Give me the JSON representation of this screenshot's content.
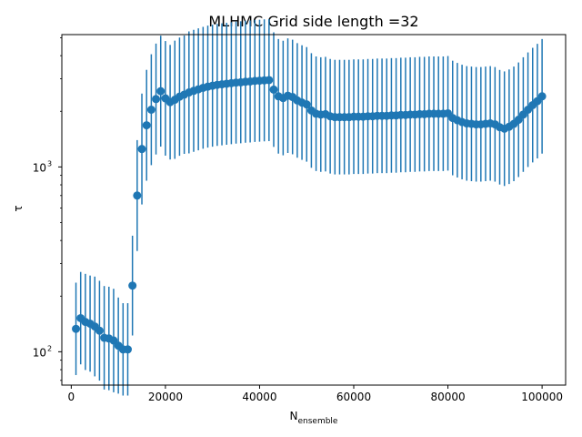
{
  "chart_data": {
    "type": "scatter",
    "title": "MLHMC Grid side length =32",
    "xlabel": "N",
    "xlabel_subscript": "ensemble",
    "ylabel": "τ",
    "yscale": "log",
    "xlim": [
      -2000,
      105000
    ],
    "ylim": [
      66,
      5200
    ],
    "xticks": [
      0,
      20000,
      40000,
      60000,
      80000,
      100000
    ],
    "xtick_labels": [
      "0",
      "20000",
      "40000",
      "60000",
      "80000",
      "100000"
    ],
    "ytick_major": [
      100,
      1000
    ],
    "ytick_labels": [
      "10",
      "10"
    ],
    "ytick_label_exponents": [
      "2",
      "3"
    ],
    "grid": false,
    "color": "#1f77b4",
    "series": [
      {
        "x": [
          1000,
          2000,
          3000,
          4000,
          5000,
          6000,
          7000,
          8000,
          9000,
          10000,
          11000,
          12000,
          13000,
          14000,
          15000,
          16000,
          17000,
          18000,
          19000,
          20000,
          21000,
          22000,
          23000,
          24000,
          25000,
          26000,
          27000,
          28000,
          29000,
          30000,
          31000,
          32000,
          33000,
          34000,
          35000,
          36000,
          37000,
          38000,
          39000,
          40000,
          41000,
          42000,
          43000,
          44000,
          45000,
          46000,
          47000,
          48000,
          49000,
          50000,
          51000,
          52000,
          53000,
          54000,
          55000,
          56000,
          57000,
          58000,
          59000,
          60000,
          61000,
          62000,
          63000,
          64000,
          65000,
          66000,
          67000,
          68000,
          69000,
          70000,
          71000,
          72000,
          73000,
          74000,
          75000,
          76000,
          77000,
          78000,
          79000,
          80000,
          81000,
          82000,
          83000,
          84000,
          85000,
          86000,
          87000,
          88000,
          89000,
          90000,
          91000,
          92000,
          93000,
          94000,
          95000,
          96000,
          97000,
          98000,
          99000,
          100000
        ],
        "y": [
          133,
          152,
          145,
          142,
          137,
          130,
          119,
          118,
          115,
          108,
          103,
          103,
          228,
          700,
          1250,
          1680,
          2040,
          2330,
          2570,
          2350,
          2240,
          2310,
          2400,
          2460,
          2530,
          2580,
          2630,
          2680,
          2720,
          2750,
          2780,
          2800,
          2820,
          2840,
          2860,
          2870,
          2890,
          2900,
          2920,
          2930,
          2940,
          2950,
          2620,
          2410,
          2360,
          2430,
          2390,
          2290,
          2230,
          2180,
          2020,
          1940,
          1920,
          1930,
          1880,
          1860,
          1860,
          1860,
          1860,
          1870,
          1870,
          1870,
          1880,
          1880,
          1890,
          1890,
          1890,
          1900,
          1900,
          1910,
          1910,
          1920,
          1920,
          1930,
          1930,
          1940,
          1940,
          1940,
          1940,
          1950,
          1840,
          1790,
          1750,
          1720,
          1710,
          1700,
          1700,
          1710,
          1720,
          1700,
          1640,
          1610,
          1650,
          1710,
          1800,
          1920,
          2040,
          2160,
          2270,
          2410
        ],
        "yerr": [
          0.25,
          0.25,
          0.26,
          0.26,
          0.27,
          0.27,
          0.28,
          0.28,
          0.28,
          0.26,
          0.25,
          0.25,
          0.27,
          0.3,
          0.3,
          0.3,
          0.3,
          0.3,
          0.3,
          0.31,
          0.31,
          0.32,
          0.32,
          0.32,
          0.33,
          0.33,
          0.33,
          0.33,
          0.33,
          0.33,
          0.33,
          0.33,
          0.33,
          0.33,
          0.33,
          0.33,
          0.33,
          0.33,
          0.33,
          0.33,
          0.33,
          0.33,
          0.31,
          0.31,
          0.31,
          0.31,
          0.31,
          0.31,
          0.31,
          0.31,
          0.31,
          0.31,
          0.31,
          0.31,
          0.31,
          0.31,
          0.31,
          0.31,
          0.31,
          0.31,
          0.31,
          0.31,
          0.31,
          0.31,
          0.31,
          0.31,
          0.31,
          0.31,
          0.31,
          0.31,
          0.31,
          0.31,
          0.31,
          0.31,
          0.31,
          0.31,
          0.31,
          0.31,
          0.31,
          0.31,
          0.31,
          0.31,
          0.31,
          0.31,
          0.31,
          0.31,
          0.31,
          0.31,
          0.31,
          0.31,
          0.31,
          0.31,
          0.31,
          0.31,
          0.31,
          0.31,
          0.31,
          0.31,
          0.31,
          0.31
        ]
      }
    ]
  }
}
